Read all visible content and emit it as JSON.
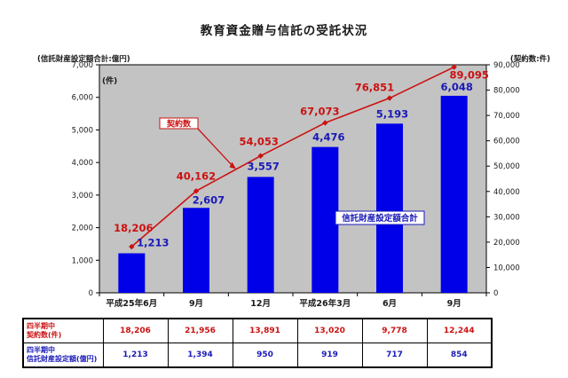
{
  "title": "教育資金贈与信託の受託状況",
  "colors": {
    "bar": "#0000e8",
    "line": "#cc1111",
    "red_text": "#cc1111",
    "blue_text": "#1a1ab8",
    "plot_bg": "#c3c3c3",
    "axis": "#000000"
  },
  "chart_data": {
    "type": "bar+line combo (cumulative)",
    "categories": [
      "平成25年6月",
      "9月",
      "12月",
      "平成26年3月",
      "6月",
      "9月"
    ],
    "series": [
      {
        "name": "信託財産設定額合計",
        "type": "bar",
        "axis": "left",
        "values": [
          1213,
          2607,
          3557,
          4476,
          5193,
          6048
        ],
        "labels": [
          "1,213",
          "2,607",
          "3,557",
          "4,476",
          "5,193",
          "6,048"
        ]
      },
      {
        "name": "契約数",
        "type": "line",
        "axis": "right",
        "values": [
          18206,
          40162,
          54053,
          67073,
          76851,
          89095
        ],
        "labels": [
          "18,206",
          "40,162",
          "54,053",
          "67,073",
          "76,851",
          "89,095"
        ]
      }
    ],
    "left_axis": {
      "caption": "(信託財産設定額合計:億円)",
      "min": 0,
      "max": 7000,
      "step": 1000,
      "ticks": [
        "0",
        "1,000",
        "2,000",
        "3,000",
        "4,000",
        "5,000",
        "6,000",
        "7,000"
      ]
    },
    "right_axis": {
      "caption": "(契約数:件)",
      "min": 0,
      "max": 90000,
      "step": 10000,
      "ticks": [
        "0",
        "10,000",
        "20,000",
        "30,000",
        "40,000",
        "50,000",
        "60,000",
        "70,000",
        "80,000",
        "90,000"
      ]
    },
    "plot_unit_label": "(件)",
    "legend": {
      "line_callout": "契約数",
      "bar_callout": "信託財産設定額合計"
    },
    "grid": false,
    "legend_position": "callout boxes inside plot"
  },
  "table": {
    "rows": [
      {
        "label_lines": [
          "四半期中",
          "契約数(件)"
        ],
        "values": [
          "18,206",
          "21,956",
          "13,891",
          "13,020",
          "9,778",
          "12,244"
        ],
        "color": "red"
      },
      {
        "label_lines": [
          "四半期中",
          "信託財産設定額(億円)"
        ],
        "values": [
          "1,213",
          "1,394",
          "950",
          "919",
          "717",
          "854"
        ],
        "color": "blue"
      }
    ]
  }
}
